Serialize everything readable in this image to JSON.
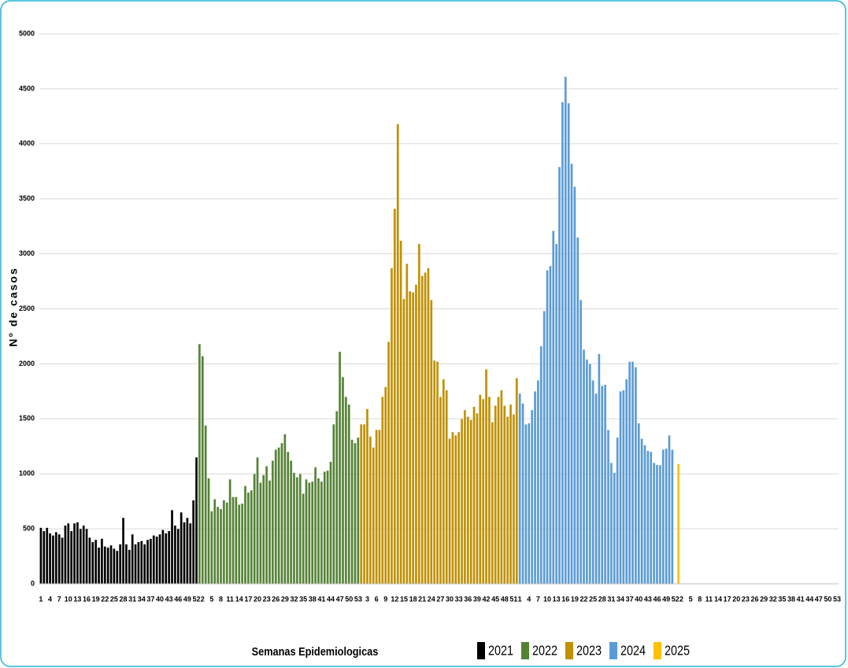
{
  "chart_data": {
    "type": "bar",
    "y_label": "N° de casos",
    "x_label": "Semanas Epidemiologicas",
    "ylim": [
      0,
      5000
    ],
    "yticks": [
      0,
      500,
      1000,
      1500,
      2000,
      2500,
      3000,
      3500,
      4000,
      4500,
      5000
    ],
    "grid": true,
    "legend": "bottom",
    "series": [
      {
        "name": "2021",
        "color": "#000000",
        "categories": [
          1,
          null,
          null,
          4,
          null,
          null,
          7,
          null,
          null,
          10,
          null,
          null,
          13,
          null,
          null,
          16,
          null,
          null,
          19,
          null,
          null,
          22,
          null,
          null,
          25,
          null,
          null,
          28,
          null,
          null,
          31,
          null,
          null,
          34,
          null,
          null,
          37,
          null,
          null,
          40,
          null,
          null,
          43,
          null,
          null,
          46,
          null,
          null,
          49,
          null,
          null,
          52
        ],
        "values": [
          510,
          480,
          510,
          460,
          440,
          470,
          450,
          420,
          530,
          550,
          480,
          550,
          560,
          500,
          530,
          500,
          420,
          380,
          400,
          330,
          410,
          340,
          330,
          350,
          320,
          300,
          360,
          600,
          360,
          310,
          450,
          360,
          380,
          390,
          360,
          400,
          410,
          440,
          430,
          450,
          490,
          460,
          480,
          670,
          530,
          500,
          650,
          560,
          600,
          550,
          760,
          1150
        ]
      },
      {
        "name": "2022",
        "color": "#548235",
        "categories": [
          null,
          2,
          null,
          null,
          5,
          null,
          null,
          8,
          null,
          null,
          11,
          null,
          null,
          14,
          null,
          null,
          17,
          null,
          null,
          20,
          null,
          null,
          23,
          null,
          null,
          26,
          null,
          null,
          29,
          null,
          null,
          32,
          null,
          null,
          35,
          null,
          null,
          38,
          null,
          null,
          41,
          null,
          null,
          44,
          null,
          null,
          47,
          null,
          null,
          50,
          null,
          null,
          53
        ],
        "values": [
          2180,
          2070,
          1440,
          960,
          660,
          770,
          700,
          680,
          760,
          740,
          950,
          790,
          790,
          720,
          730,
          890,
          830,
          850,
          1000,
          1150,
          920,
          990,
          1070,
          940,
          1120,
          1220,
          1240,
          1280,
          1360,
          1200,
          1120,
          1010,
          970,
          1000,
          820,
          950,
          920,
          930,
          1060,
          960,
          930,
          1020,
          1030,
          1110,
          1450,
          1570,
          2110,
          1880,
          1700,
          1630,
          1310,
          1280,
          1330
        ]
      },
      {
        "name": "2023",
        "color": "#bf9000",
        "categories": [
          null,
          null,
          3,
          null,
          null,
          6,
          null,
          null,
          9,
          null,
          null,
          12,
          null,
          null,
          15,
          null,
          null,
          18,
          null,
          null,
          21,
          null,
          null,
          24,
          null,
          null,
          27,
          null,
          null,
          30,
          null,
          null,
          33,
          null,
          null,
          36,
          null,
          null,
          39,
          null,
          null,
          42,
          null,
          null,
          45,
          null,
          null,
          48,
          null,
          null,
          51,
          null
        ],
        "values": [
          1450,
          1450,
          1590,
          1340,
          1240,
          1400,
          1400,
          1700,
          1790,
          2200,
          2870,
          3410,
          4180,
          3120,
          2590,
          2910,
          2660,
          2650,
          2720,
          3090,
          2800,
          2830,
          2870,
          2580,
          2030,
          2020,
          1700,
          1860,
          1760,
          1320,
          1380,
          1350,
          1380,
          1500,
          1580,
          1520,
          1490,
          1610,
          1550,
          1720,
          1680,
          1950,
          1700,
          1470,
          1620,
          1700,
          1760,
          1620,
          1520,
          1630,
          1540,
          1870
        ]
      },
      {
        "name": "2024",
        "color": "#5b9bd5",
        "categories": [
          1,
          null,
          null,
          4,
          null,
          null,
          7,
          null,
          null,
          10,
          null,
          null,
          13,
          null,
          null,
          16,
          null,
          null,
          19,
          null,
          null,
          22,
          null,
          null,
          25,
          null,
          null,
          28,
          null,
          null,
          31,
          null,
          null,
          34,
          null,
          null,
          37,
          null,
          null,
          40,
          null,
          null,
          43,
          null,
          null,
          46,
          null,
          null,
          49,
          null,
          null,
          52
        ],
        "values": [
          1730,
          1640,
          1450,
          1460,
          1580,
          1750,
          1850,
          2160,
          2480,
          2850,
          2890,
          3210,
          3090,
          3790,
          4380,
          4610,
          4370,
          3820,
          3610,
          3150,
          2580,
          2130,
          2040,
          2000,
          1850,
          1730,
          2090,
          1800,
          1810,
          1400,
          1100,
          1010,
          1330,
          1750,
          1760,
          1860,
          2020,
          2020,
          1970,
          1460,
          1320,
          1260,
          1210,
          1200,
          1100,
          1080,
          1080,
          1220,
          1230,
          1350,
          1220,
          null
        ]
      },
      {
        "name": "2025",
        "color": "#ffc000",
        "categories": [
          null,
          2,
          null,
          null,
          5,
          null,
          null,
          8,
          null,
          null,
          11,
          null,
          null,
          14,
          null,
          null,
          17,
          null,
          null,
          20,
          null,
          null,
          23,
          null,
          null,
          26,
          null,
          null,
          29,
          null,
          null,
          32,
          null,
          null,
          35,
          null,
          null,
          38,
          null,
          null,
          41,
          null,
          null,
          44,
          null,
          null,
          47,
          null,
          null,
          50,
          null,
          null,
          53
        ],
        "values": [
          1090,
          null,
          null,
          null,
          null,
          null,
          null,
          null,
          null,
          null,
          null,
          null,
          null,
          null,
          null,
          null,
          null,
          null,
          null,
          null,
          null,
          null,
          null,
          null,
          null,
          null,
          null,
          null,
          null,
          null,
          null,
          null,
          null,
          null,
          null,
          null,
          null,
          null,
          null,
          null,
          null,
          null,
          null,
          null,
          null,
          null,
          null,
          null,
          null,
          null,
          null,
          null,
          null
        ]
      }
    ]
  }
}
